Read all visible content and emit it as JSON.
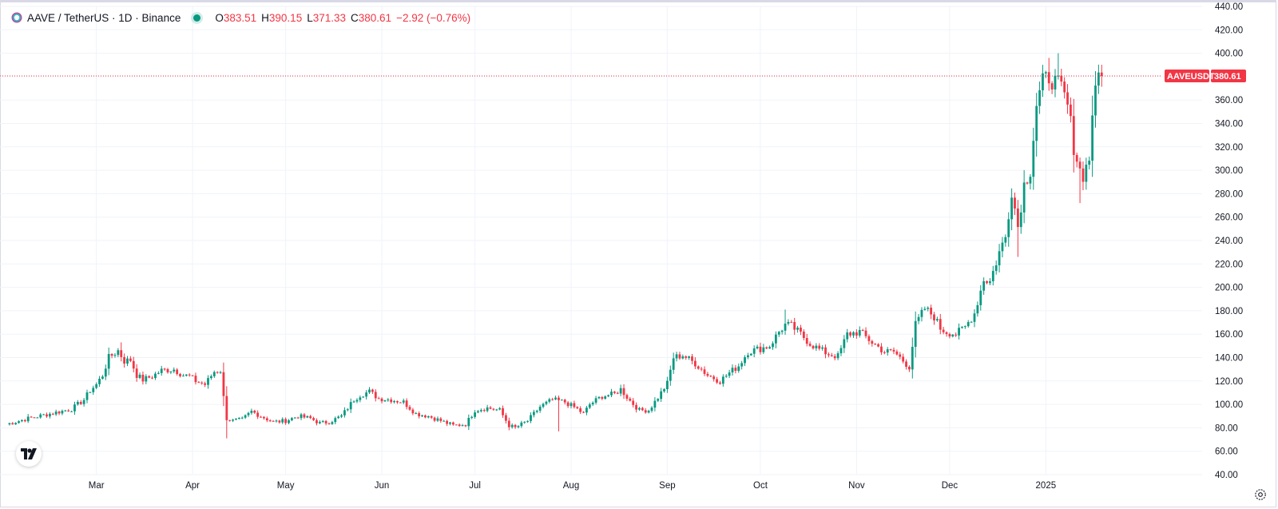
{
  "symbol": {
    "title": "AAVE / TetherUS · 1D · Binance",
    "icon": "aave-ghost-icon",
    "status": "market-open-dot",
    "ohlc": [
      {
        "k": "O",
        "v": "383.51"
      },
      {
        "k": "H",
        "v": "390.15"
      },
      {
        "k": "L",
        "v": "371.33"
      },
      {
        "k": "C",
        "v": "380.61"
      }
    ],
    "change": "−2.92 (−0.76%)"
  },
  "price_tag": {
    "ticker": "AAVEUSDT",
    "price": "380.61"
  },
  "colors": {
    "up": "#089981",
    "down": "#f23645",
    "grid": "#f0f3fa",
    "text": "#131722"
  },
  "chart_data": {
    "type": "candlestick",
    "y_axis": {
      "ticks": [
        "40.00",
        "60.00",
        "80.00",
        "100.00",
        "120.00",
        "140.00",
        "160.00",
        "180.00",
        "200.00",
        "220.00",
        "240.00",
        "260.00",
        "280.00",
        "300.00",
        "320.00",
        "340.00",
        "360.00",
        "380.00",
        "400.00",
        "420.00",
        "440.00"
      ],
      "range": [
        40,
        440
      ],
      "position": "right"
    },
    "x_axis": {
      "labels": [
        "Mar",
        "Apr",
        "May",
        "Jun",
        "Jul",
        "Aug",
        "Sep",
        "Oct",
        "Nov",
        "Dec",
        "2025"
      ],
      "label_day_index": [
        29,
        60,
        90,
        121,
        151,
        182,
        213,
        243,
        274,
        304,
        335
      ],
      "range_days": [
        0,
        347
      ]
    },
    "last_price": 380.61,
    "series_anchors": [
      [
        0,
        83
      ],
      [
        7,
        88
      ],
      [
        14,
        92
      ],
      [
        21,
        96
      ],
      [
        25,
        104
      ],
      [
        27,
        112
      ],
      [
        29,
        117
      ],
      [
        31,
        125
      ],
      [
        33,
        140
      ],
      [
        36,
        146
      ],
      [
        38,
        137
      ],
      [
        40,
        138
      ],
      [
        42,
        125
      ],
      [
        44,
        121
      ],
      [
        47,
        124
      ],
      [
        50,
        129
      ],
      [
        54,
        130
      ],
      [
        57,
        125
      ],
      [
        59,
        124
      ],
      [
        61,
        120
      ],
      [
        64,
        117
      ],
      [
        67,
        128
      ],
      [
        69,
        129
      ],
      [
        70,
        106
      ],
      [
        71,
        88
      ],
      [
        73,
        86
      ],
      [
        76,
        87
      ],
      [
        79,
        94
      ],
      [
        82,
        90
      ],
      [
        86,
        85
      ],
      [
        90,
        86
      ],
      [
        94,
        90
      ],
      [
        98,
        88
      ],
      [
        101,
        84
      ],
      [
        104,
        85
      ],
      [
        108,
        90
      ],
      [
        112,
        104
      ],
      [
        114,
        108
      ],
      [
        117,
        111
      ],
      [
        120,
        105
      ],
      [
        124,
        104
      ],
      [
        128,
        102
      ],
      [
        132,
        92
      ],
      [
        136,
        90
      ],
      [
        140,
        86
      ],
      [
        144,
        82
      ],
      [
        148,
        83
      ],
      [
        151,
        95
      ],
      [
        155,
        97
      ],
      [
        159,
        95
      ],
      [
        162,
        82
      ],
      [
        164,
        80
      ],
      [
        168,
        86
      ],
      [
        172,
        98
      ],
      [
        176,
        104
      ],
      [
        180,
        102
      ],
      [
        184,
        96
      ],
      [
        186,
        92
      ],
      [
        188,
        100
      ],
      [
        192,
        107
      ],
      [
        196,
        109
      ],
      [
        198,
        113
      ],
      [
        201,
        103
      ],
      [
        204,
        95
      ],
      [
        207,
        95
      ],
      [
        210,
        106
      ],
      [
        213,
        118
      ],
      [
        215,
        140
      ],
      [
        218,
        142
      ],
      [
        222,
        135
      ],
      [
        226,
        125
      ],
      [
        230,
        120
      ],
      [
        233,
        127
      ],
      [
        236,
        133
      ],
      [
        239,
        145
      ],
      [
        242,
        147
      ],
      [
        246,
        150
      ],
      [
        249,
        162
      ],
      [
        251,
        168
      ],
      [
        253,
        167
      ],
      [
        256,
        160
      ],
      [
        259,
        152
      ],
      [
        262,
        147
      ],
      [
        265,
        143
      ],
      [
        268,
        141
      ],
      [
        271,
        160
      ],
      [
        275,
        162
      ],
      [
        279,
        153
      ],
      [
        283,
        145
      ],
      [
        286,
        145
      ],
      [
        288,
        140
      ],
      [
        291,
        132
      ],
      [
        293,
        168
      ],
      [
        296,
        182
      ],
      [
        299,
        175
      ],
      [
        301,
        165
      ],
      [
        303,
        162
      ],
      [
        306,
        160
      ],
      [
        309,
        166
      ],
      [
        312,
        178
      ],
      [
        315,
        207
      ],
      [
        317,
        205
      ],
      [
        320,
        230
      ],
      [
        322,
        243
      ],
      [
        324,
        283
      ],
      [
        326,
        252
      ],
      [
        328,
        288
      ],
      [
        330,
        300
      ],
      [
        332,
        356
      ],
      [
        334,
        375
      ],
      [
        336,
        380
      ],
      [
        338,
        375
      ],
      [
        340,
        370
      ],
      [
        342,
        355
      ],
      [
        343,
        340
      ],
      [
        344,
        320
      ],
      [
        346,
        300
      ],
      [
        347,
        296
      ],
      [
        349,
        310
      ],
      [
        350,
        350
      ],
      [
        352,
        380
      ]
    ],
    "notable_wicks": [
      {
        "day": 37,
        "high": 153
      },
      {
        "day": 71,
        "low": 71
      },
      {
        "day": 178,
        "low": 77
      },
      {
        "day": 251,
        "high": 181
      },
      {
        "day": 326,
        "low": 226
      },
      {
        "day": 336,
        "high": 396
      },
      {
        "day": 339,
        "high": 400
      },
      {
        "day": 346,
        "low": 272
      },
      {
        "day": 353,
        "high": 390
      }
    ],
    "grid": true,
    "legend": "top-left"
  }
}
